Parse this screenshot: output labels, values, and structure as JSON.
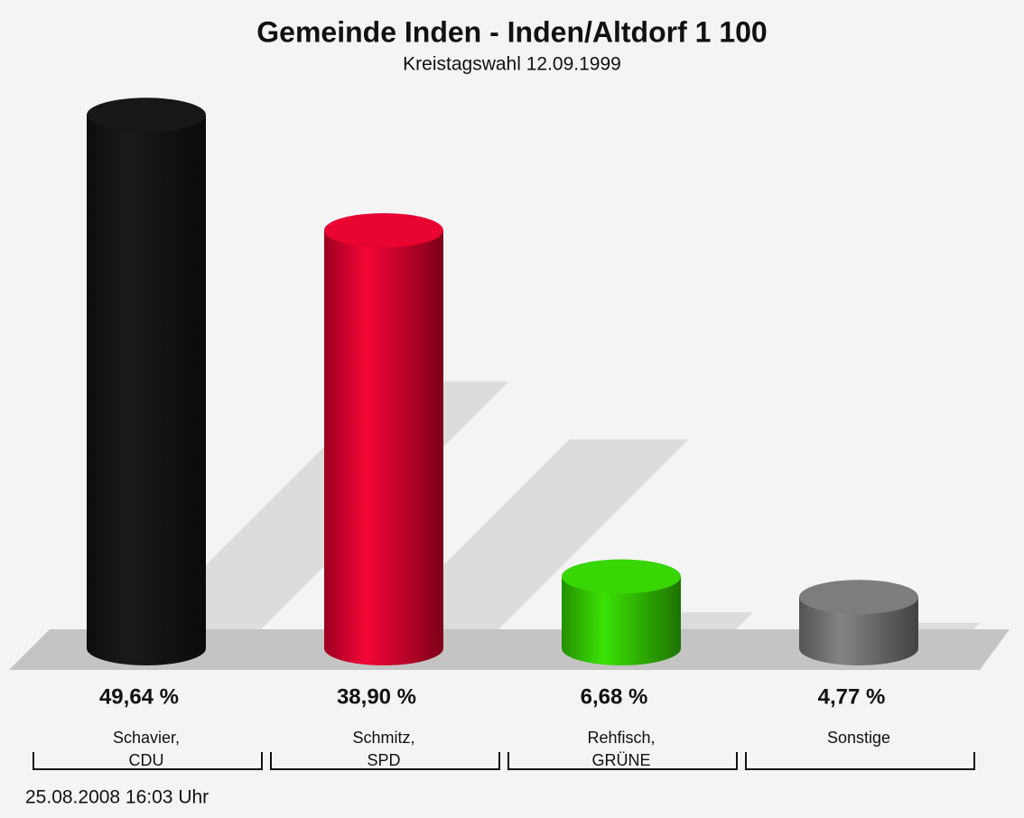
{
  "chart_data": {
    "type": "bar3d",
    "title": "Gemeinde Inden - Inden/Altdorf 1 100",
    "subtitle": "Kreistagswahl 12.09.1999",
    "categories": [
      "Schavier, CDU",
      "Schmitz, SPD",
      "Rehfisch, GRÜNE",
      "Sonstige"
    ],
    "values": [
      49.64,
      38.9,
      6.68,
      4.77
    ],
    "value_labels": [
      "49,64 %",
      "38,90 %",
      "6,68 %",
      "4,77 %"
    ],
    "colors": [
      "#111111",
      "#d0002a",
      "#2fbf00",
      "#6e6e6e"
    ],
    "footer": "25.08.2008 16:03 Uhr"
  }
}
